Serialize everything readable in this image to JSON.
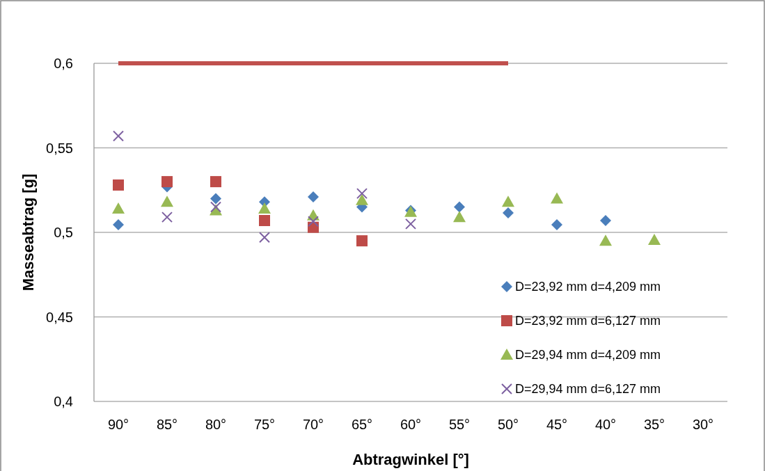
{
  "chart_data": {
    "type": "scatter",
    "xlabel": "Abtragwinkel [°]",
    "ylabel": "Masseabtrag [g]",
    "categories": [
      "90°",
      "85°",
      "80°",
      "75°",
      "70°",
      "65°",
      "60°",
      "55°",
      "50°",
      "45°",
      "40°",
      "35°",
      "30°"
    ],
    "ylim": [
      0.4,
      0.6
    ],
    "yticks": [
      {
        "value": 0.4,
        "label": "0,4"
      },
      {
        "value": 0.45,
        "label": "0,45"
      },
      {
        "value": 0.5,
        "label": "0,5"
      },
      {
        "value": 0.55,
        "label": "0,55"
      },
      {
        "value": 0.6,
        "label": "0,6"
      }
    ],
    "grid": "y",
    "legend": "bottom right",
    "series": [
      {
        "name": "D=23,92 mm d=4,209 mm",
        "color": "#4a7ebb",
        "marker": "diamond",
        "values": [
          0.5045,
          0.527,
          0.52,
          0.518,
          0.521,
          0.515,
          0.513,
          0.515,
          0.5115,
          0.5045,
          0.507,
          null,
          null
        ]
      },
      {
        "name": "D=23,92 mm d=6,127 mm",
        "color": "#be4b48",
        "marker": "square",
        "values": [
          0.528,
          0.53,
          0.53,
          0.507,
          0.503,
          0.495,
          null,
          null,
          null,
          null,
          null,
          null,
          null
        ]
      },
      {
        "name": "D=29,94 mm d=4,209 mm",
        "color": "#98b954",
        "marker": "triangle",
        "values": [
          0.514,
          0.518,
          0.513,
          0.514,
          0.51,
          0.519,
          0.512,
          0.509,
          0.518,
          0.52,
          0.495,
          0.4955,
          null
        ]
      },
      {
        "name": "D=29,94 mm d=6,127 mm",
        "color": "#7d60a0",
        "marker": "cross",
        "values": [
          0.557,
          0.509,
          0.515,
          0.497,
          0.5065,
          0.523,
          0.505,
          null,
          null,
          null,
          null,
          null,
          null
        ]
      },
      {
        "type": "line",
        "color": "#c0504d",
        "marker": "none",
        "values": [
          0.6,
          0.6,
          0.6,
          0.6,
          0.6,
          0.6,
          0.6,
          0.6,
          0.6,
          null,
          null,
          null,
          null
        ]
      }
    ]
  }
}
